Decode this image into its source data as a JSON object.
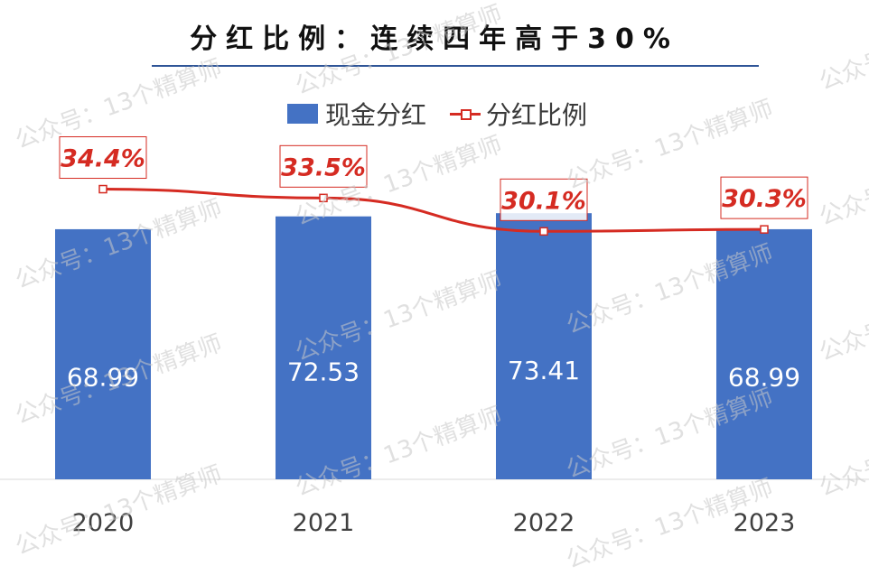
{
  "chart_data": {
    "type": "bar",
    "title": "分红比例：连续四年高于30%",
    "categories": [
      "2020",
      "2021",
      "2022",
      "2023"
    ],
    "series": [
      {
        "name": "现金分红",
        "type": "bar",
        "values": [
          68.99,
          72.53,
          73.41,
          68.99
        ],
        "value_labels": [
          "68.99",
          "72.53",
          "73.41",
          "68.99"
        ],
        "color": "#4472c4"
      },
      {
        "name": "分红比例",
        "type": "line",
        "values": [
          34.4,
          33.5,
          30.1,
          30.3
        ],
        "value_labels": [
          "34.4%",
          "33.5%",
          "30.1%",
          "30.3%"
        ],
        "color": "#d52b22"
      }
    ],
    "legend_position": "top",
    "grid": false
  },
  "watermark": {
    "text": "公众号：13个精算师"
  }
}
